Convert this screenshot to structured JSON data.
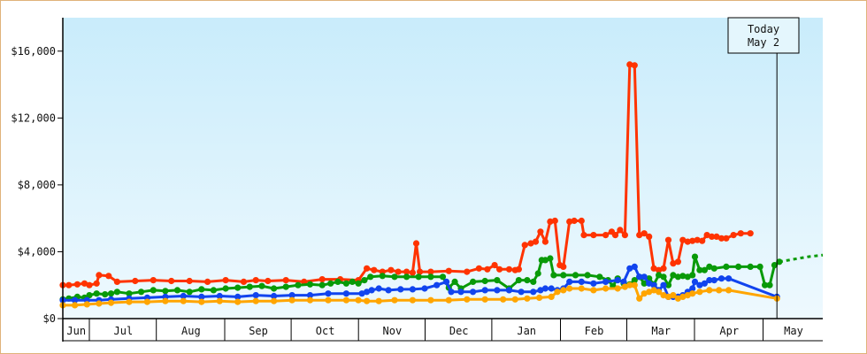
{
  "chart_data": {
    "type": "line",
    "title": "",
    "xlabel": "",
    "ylabel": "",
    "ylim": [
      0,
      18000
    ],
    "y_ticks": [
      "$0",
      "$4,000",
      "$8,000",
      "$12,000",
      "$16,000"
    ],
    "y_tick_values": [
      0,
      4000,
      8000,
      12000,
      16000
    ],
    "x_ticks": [
      "Jun",
      "Jul",
      "Aug",
      "Sep",
      "Oct",
      "Nov",
      "Dec",
      "Jan",
      "Feb",
      "Mar",
      "Apr",
      "May"
    ],
    "today_label": [
      "Today",
      "May 2"
    ],
    "background_gradient": [
      "#c9ecfb",
      "#eef9fe"
    ],
    "series": [
      {
        "color": "#ff3300",
        "values": [
          [
            0,
            2000
          ],
          [
            5,
            2000
          ],
          [
            12,
            2050
          ],
          [
            18,
            2100
          ],
          [
            22,
            2000
          ],
          [
            28,
            2100
          ],
          [
            30,
            2600
          ],
          [
            38,
            2550
          ],
          [
            45,
            2200
          ],
          [
            60,
            2250
          ],
          [
            75,
            2300
          ],
          [
            90,
            2250
          ],
          [
            105,
            2250
          ],
          [
            120,
            2200
          ],
          [
            135,
            2300
          ],
          [
            150,
            2200
          ],
          [
            160,
            2300
          ],
          [
            170,
            2250
          ],
          [
            185,
            2300
          ],
          [
            200,
            2200
          ],
          [
            215,
            2350
          ],
          [
            230,
            2350
          ],
          [
            245,
            2300
          ],
          [
            252,
            3000
          ],
          [
            258,
            2900
          ],
          [
            265,
            2800
          ],
          [
            272,
            2900
          ],
          [
            278,
            2800
          ],
          [
            285,
            2800
          ],
          [
            290,
            2750
          ],
          [
            293,
            4500
          ],
          [
            296,
            2800
          ],
          [
            305,
            2800
          ],
          [
            320,
            2850
          ],
          [
            335,
            2800
          ],
          [
            345,
            3000
          ],
          [
            352,
            2950
          ],
          [
            358,
            3200
          ],
          [
            362,
            2950
          ],
          [
            370,
            2950
          ],
          [
            375,
            2900
          ],
          [
            378,
            2950
          ],
          [
            383,
            4400
          ],
          [
            388,
            4500
          ],
          [
            392,
            4600
          ],
          [
            396,
            5200
          ],
          [
            400,
            4600
          ],
          [
            404,
            5800
          ],
          [
            408,
            5850
          ],
          [
            412,
            3200
          ],
          [
            415,
            3100
          ],
          [
            420,
            5800
          ],
          [
            424,
            5850
          ],
          [
            430,
            5850
          ],
          [
            432,
            5000
          ],
          [
            440,
            5000
          ],
          [
            450,
            5000
          ],
          [
            455,
            5200
          ],
          [
            458,
            5000
          ],
          [
            462,
            5300
          ],
          [
            466,
            5000
          ],
          [
            470,
            15200
          ],
          [
            474,
            15150
          ],
          [
            478,
            5000
          ],
          [
            482,
            5100
          ],
          [
            486,
            4900
          ],
          [
            490,
            3000
          ],
          [
            494,
            2900
          ],
          [
            498,
            3000
          ],
          [
            502,
            4700
          ],
          [
            506,
            3300
          ],
          [
            510,
            3400
          ],
          [
            514,
            4700
          ],
          [
            518,
            4600
          ],
          [
            522,
            4650
          ],
          [
            526,
            4700
          ],
          [
            530,
            4650
          ],
          [
            534,
            5000
          ],
          [
            538,
            4900
          ],
          [
            542,
            4900
          ],
          [
            546,
            4800
          ],
          [
            550,
            4800
          ],
          [
            556,
            5000
          ],
          [
            562,
            5100
          ],
          [
            570,
            5100
          ]
        ]
      },
      {
        "color": "#089a08",
        "values": [
          [
            0,
            1150
          ],
          [
            5,
            1200
          ],
          [
            12,
            1300
          ],
          [
            18,
            1250
          ],
          [
            22,
            1400
          ],
          [
            28,
            1500
          ],
          [
            35,
            1450
          ],
          [
            40,
            1500
          ],
          [
            45,
            1600
          ],
          [
            55,
            1500
          ],
          [
            65,
            1600
          ],
          [
            75,
            1700
          ],
          [
            85,
            1650
          ],
          [
            95,
            1700
          ],
          [
            105,
            1600
          ],
          [
            115,
            1750
          ],
          [
            125,
            1700
          ],
          [
            135,
            1800
          ],
          [
            145,
            1850
          ],
          [
            155,
            1900
          ],
          [
            165,
            1950
          ],
          [
            175,
            1800
          ],
          [
            185,
            1900
          ],
          [
            195,
            2000
          ],
          [
            205,
            2050
          ],
          [
            215,
            2000
          ],
          [
            222,
            2100
          ],
          [
            228,
            2200
          ],
          [
            235,
            2100
          ],
          [
            240,
            2200
          ],
          [
            245,
            2100
          ],
          [
            250,
            2300
          ],
          [
            255,
            2500
          ],
          [
            265,
            2550
          ],
          [
            275,
            2500
          ],
          [
            285,
            2500
          ],
          [
            295,
            2500
          ],
          [
            305,
            2500
          ],
          [
            315,
            2500
          ],
          [
            320,
            1850
          ],
          [
            325,
            2200
          ],
          [
            330,
            1800
          ],
          [
            340,
            2200
          ],
          [
            350,
            2250
          ],
          [
            360,
            2300
          ],
          [
            370,
            1800
          ],
          [
            378,
            2300
          ],
          [
            385,
            2300
          ],
          [
            390,
            2200
          ],
          [
            394,
            2700
          ],
          [
            397,
            3500
          ],
          [
            400,
            3500
          ],
          [
            404,
            3600
          ],
          [
            407,
            2600
          ],
          [
            415,
            2600
          ],
          [
            425,
            2600
          ],
          [
            435,
            2600
          ],
          [
            445,
            2500
          ],
          [
            452,
            2300
          ],
          [
            456,
            1950
          ],
          [
            460,
            2400
          ],
          [
            465,
            2100
          ],
          [
            470,
            2050
          ],
          [
            474,
            2300
          ],
          [
            478,
            2500
          ],
          [
            482,
            2100
          ],
          [
            486,
            2400
          ],
          [
            490,
            2050
          ],
          [
            494,
            2600
          ],
          [
            498,
            2500
          ],
          [
            502,
            2000
          ],
          [
            506,
            2600
          ],
          [
            510,
            2500
          ],
          [
            514,
            2550
          ],
          [
            518,
            2500
          ],
          [
            522,
            2600
          ],
          [
            524,
            3700
          ],
          [
            528,
            2900
          ],
          [
            532,
            2900
          ],
          [
            536,
            3100
          ],
          [
            540,
            3000
          ],
          [
            550,
            3100
          ],
          [
            560,
            3100
          ],
          [
            570,
            3100
          ],
          [
            578,
            3100
          ],
          [
            582,
            2000
          ],
          [
            586,
            2000
          ],
          [
            590,
            3200
          ],
          [
            594,
            3400
          ]
        ]
      },
      {
        "color": "#1144ee",
        "values": [
          [
            0,
            1100
          ],
          [
            10,
            1100
          ],
          [
            20,
            1100
          ],
          [
            30,
            1100
          ],
          [
            40,
            1150
          ],
          [
            55,
            1200
          ],
          [
            70,
            1250
          ],
          [
            85,
            1300
          ],
          [
            100,
            1350
          ],
          [
            115,
            1300
          ],
          [
            130,
            1350
          ],
          [
            145,
            1300
          ],
          [
            160,
            1400
          ],
          [
            175,
            1350
          ],
          [
            190,
            1400
          ],
          [
            205,
            1400
          ],
          [
            220,
            1500
          ],
          [
            235,
            1500
          ],
          [
            248,
            1500
          ],
          [
            252,
            1600
          ],
          [
            256,
            1700
          ],
          [
            262,
            1800
          ],
          [
            270,
            1700
          ],
          [
            280,
            1750
          ],
          [
            290,
            1750
          ],
          [
            300,
            1800
          ],
          [
            310,
            2000
          ],
          [
            318,
            2200
          ],
          [
            322,
            1600
          ],
          [
            330,
            1600
          ],
          [
            340,
            1600
          ],
          [
            350,
            1700
          ],
          [
            360,
            1700
          ],
          [
            370,
            1700
          ],
          [
            380,
            1600
          ],
          [
            390,
            1600
          ],
          [
            396,
            1700
          ],
          [
            400,
            1800
          ],
          [
            405,
            1800
          ],
          [
            410,
            1700
          ],
          [
            415,
            1800
          ],
          [
            420,
            2200
          ],
          [
            430,
            2200
          ],
          [
            440,
            2100
          ],
          [
            450,
            2200
          ],
          [
            460,
            2300
          ],
          [
            465,
            2200
          ],
          [
            470,
            3000
          ],
          [
            474,
            3100
          ],
          [
            478,
            2500
          ],
          [
            482,
            2500
          ],
          [
            486,
            2100
          ],
          [
            490,
            2000
          ],
          [
            494,
            1700
          ],
          [
            498,
            2000
          ],
          [
            502,
            1300
          ],
          [
            506,
            1300
          ],
          [
            510,
            1300
          ],
          [
            514,
            1400
          ],
          [
            518,
            1600
          ],
          [
            522,
            1800
          ],
          [
            524,
            2200
          ],
          [
            528,
            2000
          ],
          [
            532,
            2100
          ],
          [
            536,
            2300
          ],
          [
            540,
            2300
          ],
          [
            546,
            2400
          ],
          [
            552,
            2400
          ],
          [
            592,
            1300
          ]
        ]
      },
      {
        "color": "#ffa500",
        "values": [
          [
            0,
            800
          ],
          [
            10,
            800
          ],
          [
            20,
            850
          ],
          [
            30,
            900
          ],
          [
            40,
            950
          ],
          [
            55,
            1000
          ],
          [
            70,
            1000
          ],
          [
            85,
            1050
          ],
          [
            100,
            1050
          ],
          [
            115,
            1000
          ],
          [
            130,
            1050
          ],
          [
            145,
            1000
          ],
          [
            160,
            1050
          ],
          [
            175,
            1050
          ],
          [
            190,
            1100
          ],
          [
            205,
            1100
          ],
          [
            220,
            1100
          ],
          [
            235,
            1100
          ],
          [
            245,
            1100
          ],
          [
            252,
            1050
          ],
          [
            262,
            1050
          ],
          [
            275,
            1100
          ],
          [
            290,
            1100
          ],
          [
            305,
            1100
          ],
          [
            320,
            1100
          ],
          [
            335,
            1150
          ],
          [
            350,
            1150
          ],
          [
            365,
            1150
          ],
          [
            375,
            1150
          ],
          [
            385,
            1200
          ],
          [
            395,
            1250
          ],
          [
            405,
            1300
          ],
          [
            410,
            1600
          ],
          [
            415,
            1700
          ],
          [
            420,
            1800
          ],
          [
            430,
            1800
          ],
          [
            440,
            1700
          ],
          [
            450,
            1800
          ],
          [
            460,
            1800
          ],
          [
            466,
            1900
          ],
          [
            470,
            2000
          ],
          [
            474,
            2000
          ],
          [
            478,
            1200
          ],
          [
            482,
            1500
          ],
          [
            486,
            1600
          ],
          [
            490,
            1700
          ],
          [
            494,
            1600
          ],
          [
            498,
            1400
          ],
          [
            502,
            1300
          ],
          [
            506,
            1400
          ],
          [
            510,
            1200
          ],
          [
            514,
            1300
          ],
          [
            518,
            1400
          ],
          [
            522,
            1500
          ],
          [
            528,
            1600
          ],
          [
            536,
            1700
          ],
          [
            544,
            1700
          ],
          [
            552,
            1700
          ],
          [
            592,
            1200
          ]
        ]
      }
    ],
    "forecast": {
      "color": "#089a08",
      "values": [
        [
          594,
          3400
        ],
        [
          606,
          3550
        ],
        [
          618,
          3700
        ],
        [
          630,
          3800
        ]
      ]
    },
    "x_domain": [
      0,
      630
    ],
    "today_x": 592
  }
}
